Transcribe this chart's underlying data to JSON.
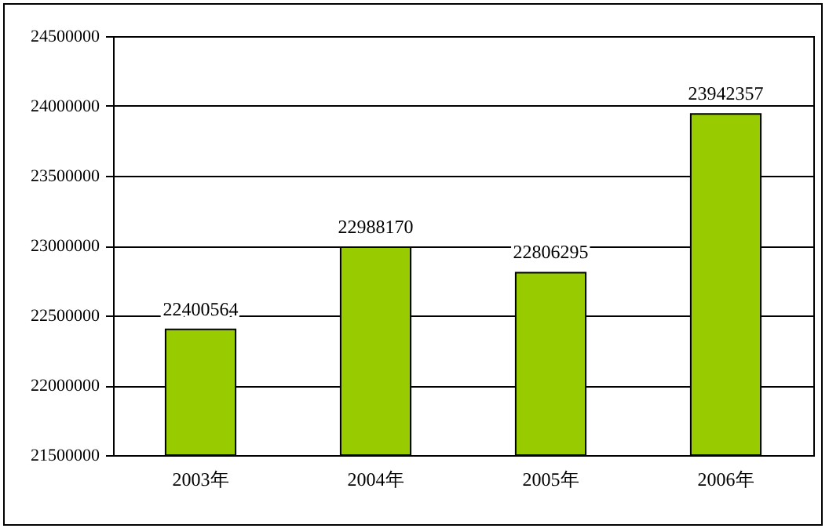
{
  "chart_data": {
    "type": "bar",
    "categories": [
      "2003年",
      "2004年",
      "2005年",
      "2006年"
    ],
    "values": [
      22400564,
      22988170,
      22806295,
      23942357
    ],
    "color": "#99cc00",
    "ylim": [
      21500000,
      24500000
    ],
    "yticks": [
      21500000,
      22000000,
      22500000,
      23000000,
      23500000,
      24000000,
      24500000
    ],
    "grid": "y",
    "data_labels": true
  }
}
